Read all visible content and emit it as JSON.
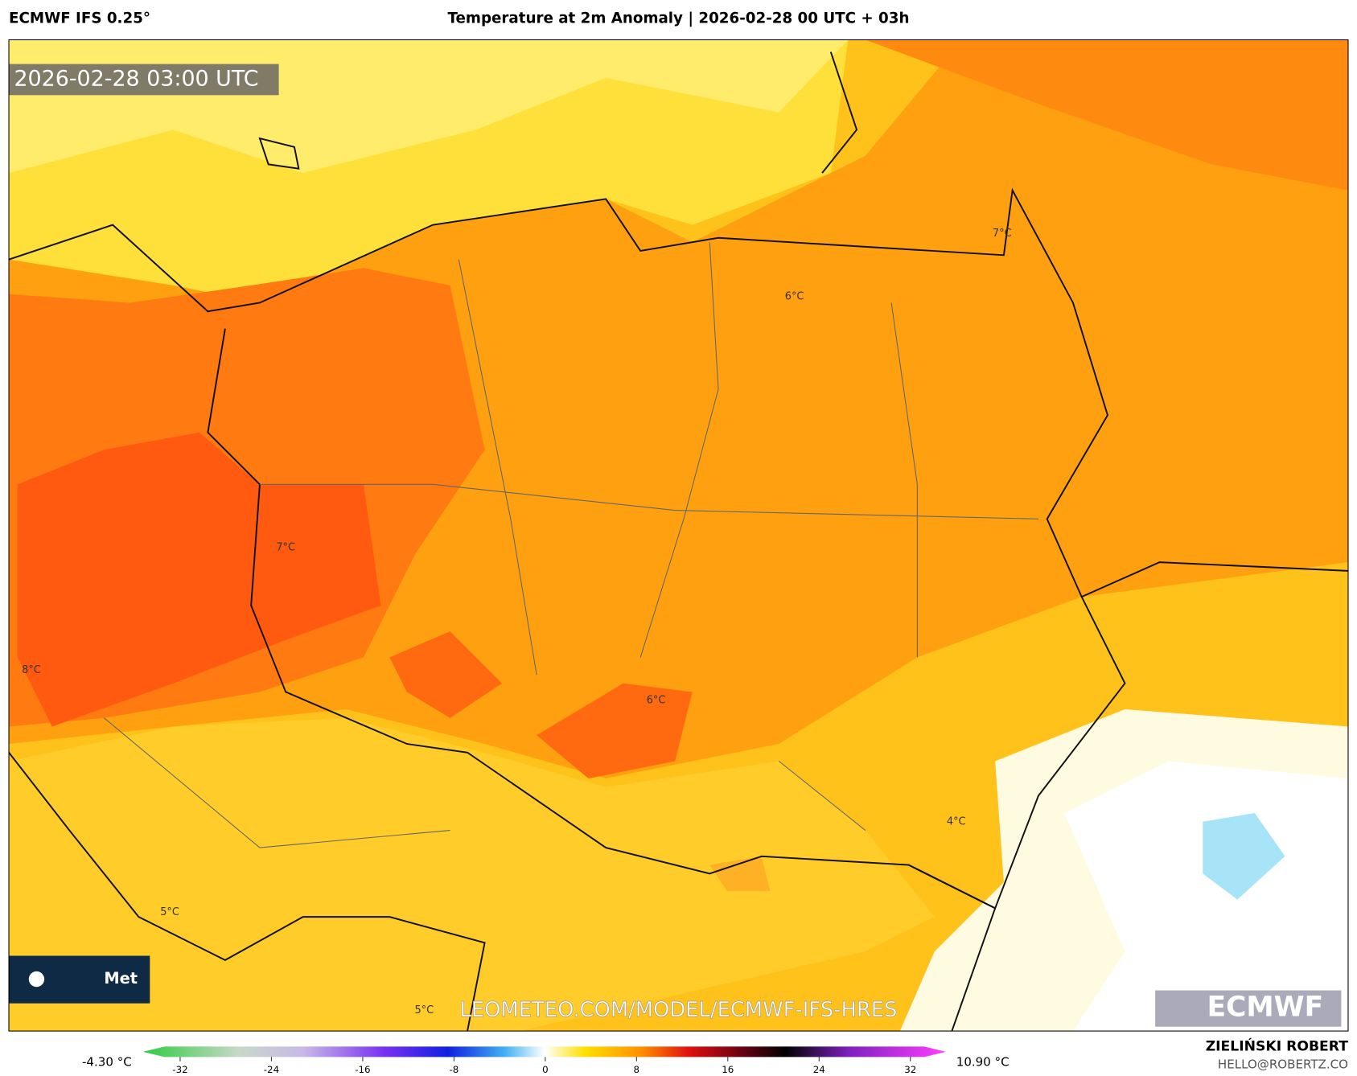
{
  "header": {
    "model": "ECMWF IFS 0.25°",
    "title": "Temperature at 2m Anomaly | 2026-02-28 00 UTC + 03h"
  },
  "map": {
    "timestamp": "2026-02-28 03:00 UTC",
    "labels": [
      "7°C",
      "6°C",
      "7°C",
      "8°C",
      "6°C",
      "4°C",
      "5°C",
      "5°C"
    ],
    "watermark": "LEOMETEO.COM/MODEL/ECMWF-IFS-HRES",
    "logo_left": "Met",
    "logo_right": "ECMWF"
  },
  "colorbar": {
    "min_label": "-4.30 °C",
    "max_label": "10.90 °C",
    "ticks": [
      -32,
      -24,
      -16,
      -8,
      0,
      8,
      16,
      24,
      32
    ]
  },
  "footer": {
    "author": "ZIELIŃSKI ROBERT",
    "contact": "HELLO@ROBERTZ.CO"
  }
}
